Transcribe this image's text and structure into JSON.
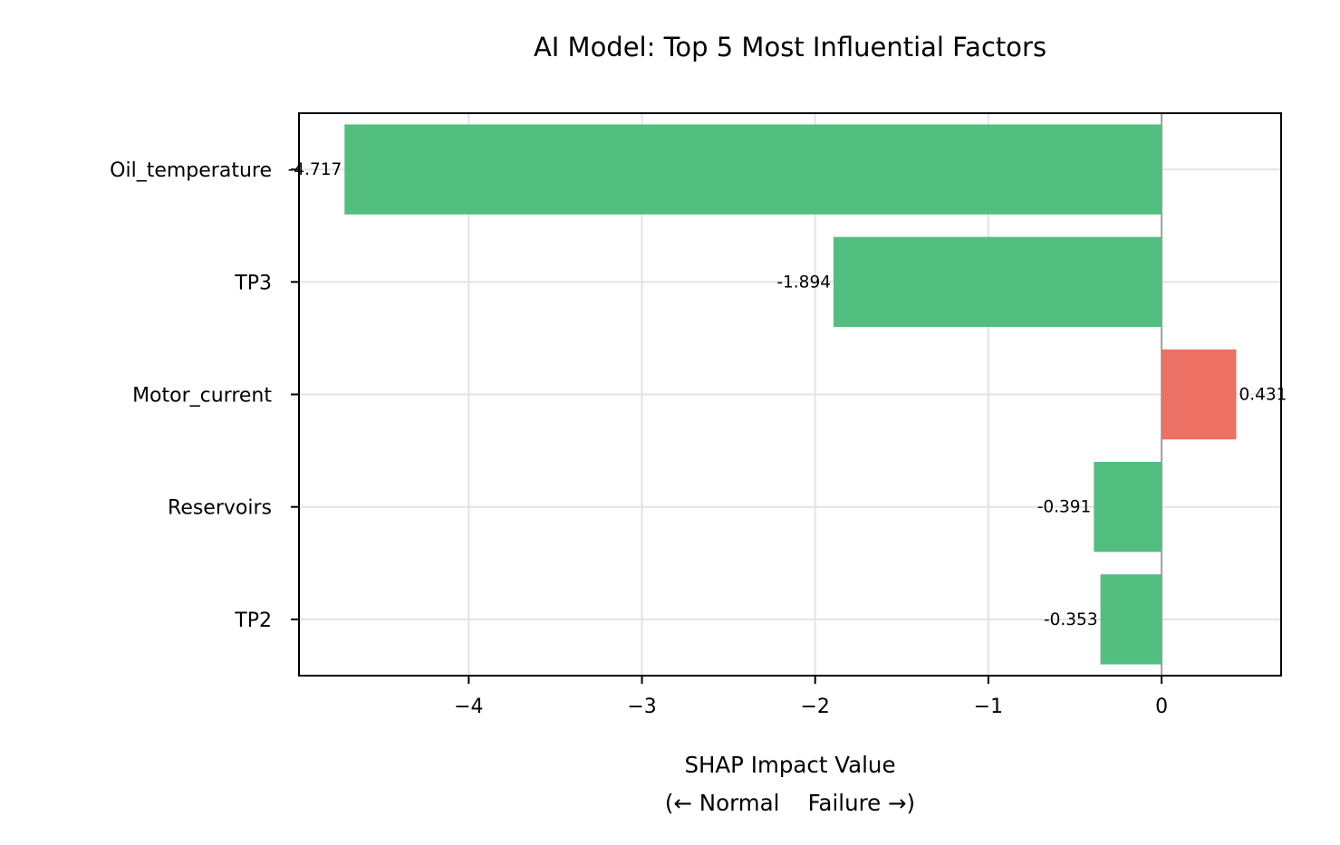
{
  "chart_data": {
    "type": "bar",
    "orientation": "horizontal",
    "title": "AI Model: Top 5 Most Influential Factors",
    "xlabel_lines": [
      "SHAP Impact Value",
      "(← Normal    Failure →)"
    ],
    "ylabel": "",
    "categories": [
      "Oil_temperature",
      "TP3",
      "Motor_current",
      "Reservoirs",
      "TP2"
    ],
    "values": [
      -4.717,
      -1.894,
      0.431,
      -0.391,
      -0.353
    ],
    "value_labels": [
      "-4.717",
      "-1.894",
      "0.431",
      "-0.391",
      "-0.353"
    ],
    "xlim": [
      -4.98,
      0.69
    ],
    "xticks": [
      -4,
      -3,
      -2,
      -1,
      0
    ],
    "xtick_labels": [
      "−4",
      "−3",
      "−2",
      "−1",
      "0"
    ],
    "grid": true,
    "zero_line": true,
    "colors": {
      "negative": "#52be80",
      "positive": "#ec7063",
      "grid": "#e3e3e3",
      "zero_line": "#a0a0a0",
      "axes": "#000000"
    }
  }
}
